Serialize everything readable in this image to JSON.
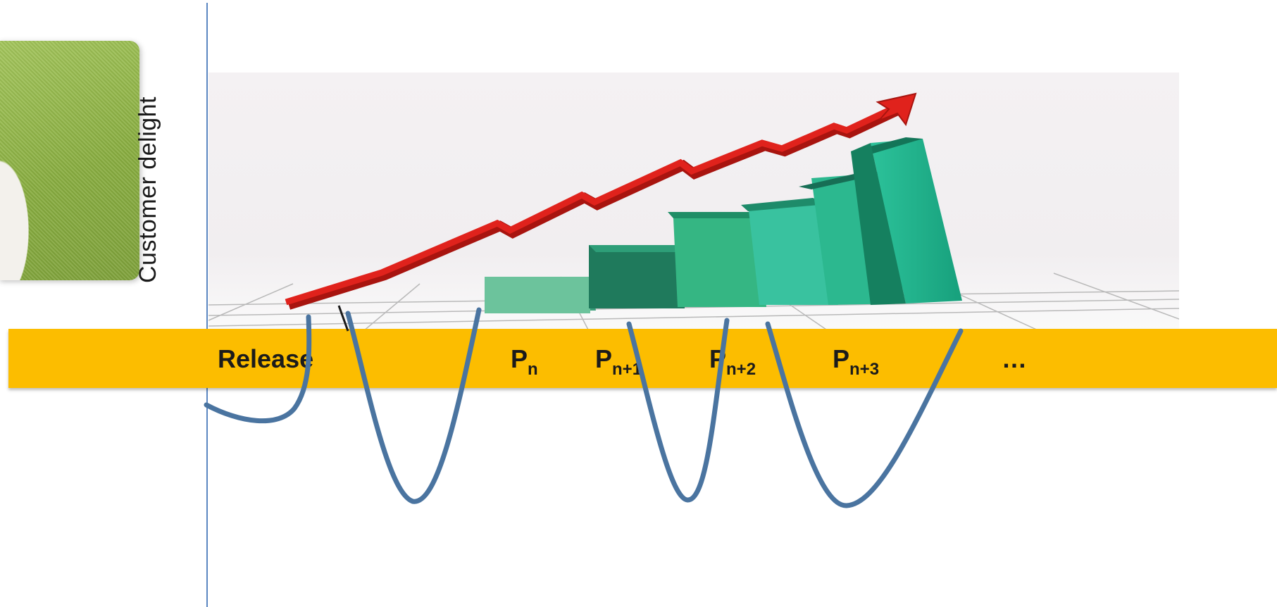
{
  "diagram": {
    "y_axis_title": "Customer delight",
    "phases": [
      {
        "label": "Release",
        "sub": ""
      },
      {
        "label": "P",
        "sub": "n"
      },
      {
        "label": "P",
        "sub": "n+1"
      },
      {
        "label": "P",
        "sub": "n+2"
      },
      {
        "label": "P",
        "sub": "n+3"
      },
      {
        "label": "…",
        "sub": ""
      }
    ],
    "colors": {
      "band": "#fcbd00",
      "curve": "#4a74a0",
      "axis": "#5b86c2",
      "arrow": "#e0221c",
      "bars": "#1fae88"
    },
    "icons": {
      "growth_chart": "bar-chart-with-rising-arrow-icon",
      "photo": "person-photo"
    }
  }
}
